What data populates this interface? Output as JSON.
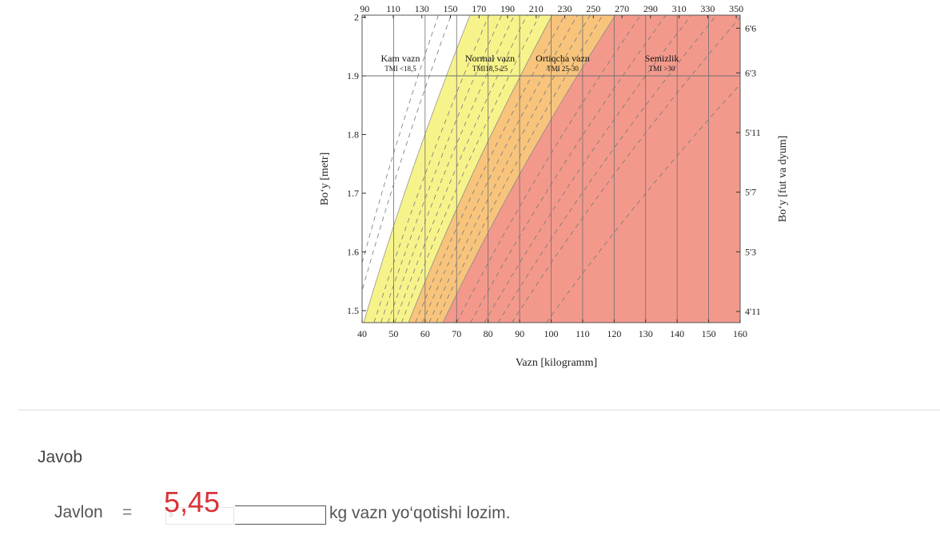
{
  "chart_data": {
    "type": "area",
    "xlabel": "Vazn [kilogramm]",
    "ylabel": "Bo‘y [metr]",
    "y2label": "Bo‘y [fut va dyum]",
    "xlim": [
      40,
      160
    ],
    "ylim": [
      1.45,
      2.0
    ],
    "x_ticks": [
      40,
      50,
      60,
      70,
      80,
      90,
      100,
      110,
      120,
      130,
      140,
      150,
      160
    ],
    "y_ticks": [
      "1.5",
      "1.6",
      "1.7",
      "1.8",
      "1.9",
      "2"
    ],
    "top_ticks": [
      "90",
      "110",
      "130",
      "150",
      "170",
      "190",
      "210",
      "230",
      "250",
      "270",
      "290",
      "310",
      "330",
      "350"
    ],
    "right_ticks": [
      "4'11",
      "5'3",
      "5'7",
      "5'11",
      "6'3",
      "6'6"
    ],
    "bmi_boundaries": [
      18.5,
      25,
      30
    ],
    "series": [
      {
        "name": "Kam vazn",
        "range": "TMI <18,5",
        "color": "#ffffff"
      },
      {
        "name": "Normal vazn",
        "range": "TMI18,5-25",
        "color": "#f7f38b"
      },
      {
        "name": "Ortiqcha vazn",
        "range": "TMI 25-30",
        "color": "#f8c47c"
      },
      {
        "name": "Semizlik",
        "range": "TMI >30",
        "color": "#f3998c"
      }
    ]
  },
  "answer": {
    "heading": "Javob",
    "name": "Javlon",
    "equals": "=",
    "handwritten_value": "5,45",
    "box_value": "5",
    "suffix": "kg vazn yo‘qotishi lozim."
  }
}
